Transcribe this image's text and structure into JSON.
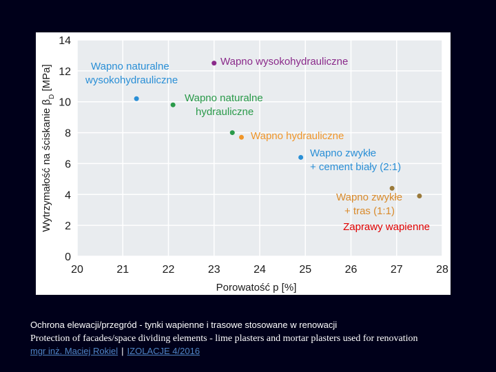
{
  "chart_data": {
    "type": "scatter",
    "xlabel": "Porowatość p [%]",
    "ylabel_main": "Wytrzymałość na ściskanie β",
    "ylabel_sub": "D",
    "ylabel_unit": "[MPa]",
    "xlim": [
      20,
      28
    ],
    "ylim": [
      0,
      14
    ],
    "x_ticks": [
      "20",
      "21",
      "22",
      "23",
      "24",
      "25",
      "26",
      "27",
      "28"
    ],
    "y_ticks": [
      "0",
      "2",
      "4",
      "6",
      "8",
      "10",
      "12",
      "14"
    ],
    "grid": true,
    "series": [
      {
        "name": "Wapno naturalne wysokohydrauliczne",
        "label_lines": [
          "Wapno naturalne",
          "wysokohydrauliczne"
        ],
        "color": "#2a8fd6",
        "points": [
          {
            "x": 21.3,
            "y": 10.2
          }
        ]
      },
      {
        "name": "Wapno wysokohydrauliczne",
        "label_lines": [
          "Wapno wysokohydrauliczne"
        ],
        "color": "#8a2a8a",
        "points": [
          {
            "x": 23.0,
            "y": 12.5
          }
        ]
      },
      {
        "name": "Wapno naturalne hydrauliczne",
        "label_lines": [
          "Wapno naturalne",
          "hydrauliczne"
        ],
        "color": "#2a9a4a",
        "points": [
          {
            "x": 22.1,
            "y": 9.8
          },
          {
            "x": 23.4,
            "y": 8.0
          }
        ]
      },
      {
        "name": "Wapno hydrauliczne",
        "label_lines": [
          "Wapno hydrauliczne"
        ],
        "color": "#f0962a",
        "points": [
          {
            "x": 23.6,
            "y": 7.7
          }
        ]
      },
      {
        "name": "Wapno zwykłe + cement biały (2:1)",
        "label_lines": [
          "Wapno zwykłe",
          "+ cement biały (2:1)"
        ],
        "color": "#2a8fd6",
        "points": [
          {
            "x": 24.9,
            "y": 6.4
          }
        ]
      },
      {
        "name": "Wapno zwykłe + tras (1:1)",
        "label_lines": [
          "Wapno zwykłe",
          "+ tras (1:1)"
        ],
        "color": "#9a7a3a",
        "label_color": "#d98a2a",
        "points": [
          {
            "x": 26.9,
            "y": 4.4
          },
          {
            "x": 27.5,
            "y": 3.9
          }
        ]
      }
    ],
    "annotation": "Zaprawy wapienne",
    "annotation_color": "#e00000"
  },
  "caption": {
    "polish": "Ochrona elewacji/przegród - tynki wapienne i trasowe stosowane w renowacji",
    "english": "Protection of facades/space dividing elements - lime plasters and mortar plasters used for renovation",
    "author": "mgr inż. Maciej Rokiel",
    "separator": "|",
    "source": "IZOLACJE 4/2016"
  }
}
